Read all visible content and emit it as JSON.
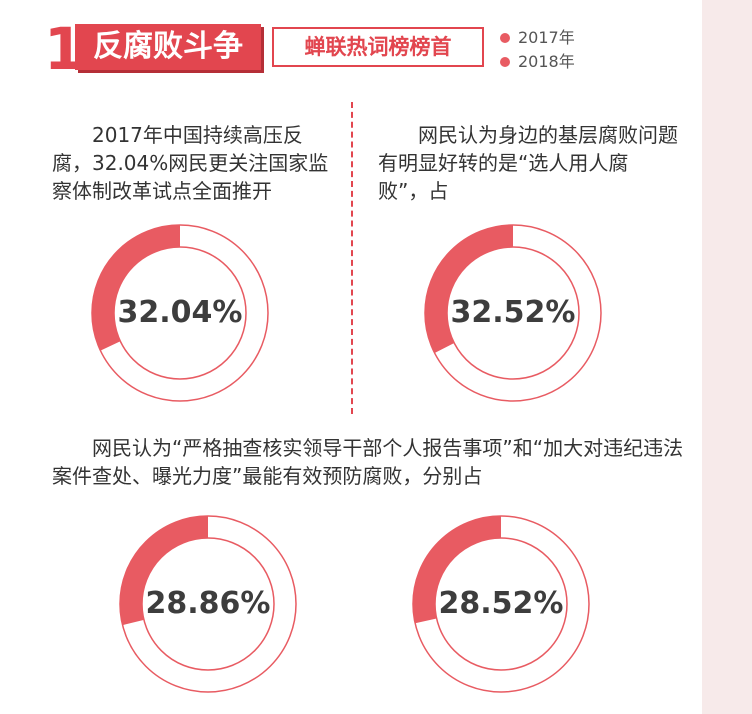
{
  "header": {
    "number": "1",
    "title": "反腐败斗争",
    "subtitle": "蝉联热词榜榜首",
    "legend": [
      {
        "label": "2017年",
        "color": "#e85b62"
      },
      {
        "label": "2018年",
        "color": "#e85b62"
      }
    ]
  },
  "captions": {
    "top_left": "2017年中国持续高压反腐，32.04%网民更关注国家监察体制改革试点全面推开",
    "top_right": "网民认为身边的基层腐败问题有明显好转的是“选人用人腐败”，占",
    "bottom": "网民认为“严格抽查核实领导干部个人报告事项”和“加大对违纪违法案件查处、曝光力度”最能有效预防腐败，分别占"
  },
  "colors": {
    "accent": "#e2464f",
    "ring_fill": "#e85b62",
    "ring_track": "#ffffff",
    "ring_outline": "#e85b62"
  },
  "chart_data": [
    {
      "type": "pie",
      "title": "",
      "values": [
        32.04
      ],
      "label": "32.04%"
    },
    {
      "type": "pie",
      "title": "",
      "values": [
        32.52
      ],
      "label": "32.52%"
    },
    {
      "type": "pie",
      "title": "",
      "values": [
        28.86
      ],
      "label": "28.86%"
    },
    {
      "type": "pie",
      "title": "",
      "values": [
        28.52
      ],
      "label": "28.52%"
    }
  ]
}
